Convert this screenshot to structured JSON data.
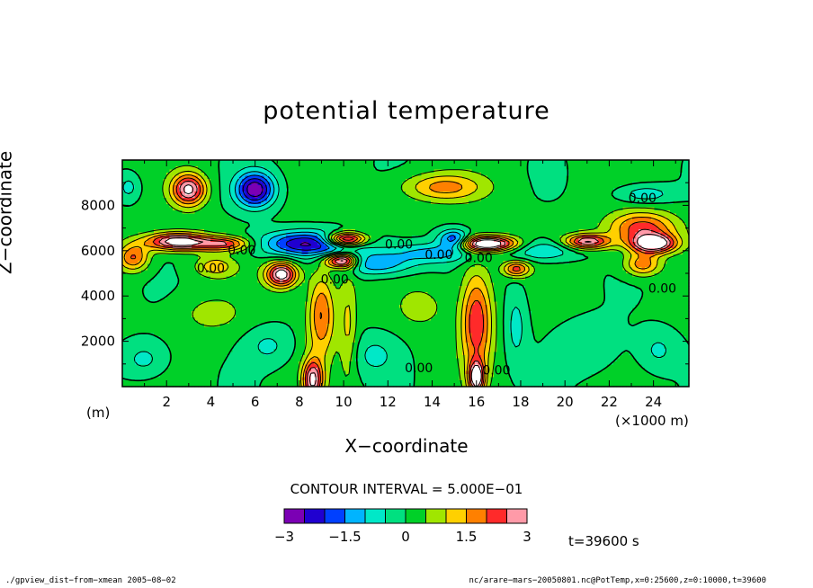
{
  "chart_data": {
    "type": "heatmap",
    "title": "potential temperature",
    "xlabel": "X−coordinate",
    "ylabel": "Z−coordinate",
    "x_unit_label": "(×1000 m)",
    "y_unit_label": "(m)",
    "xlim": [
      0,
      25.6
    ],
    "ylim": [
      0,
      10000
    ],
    "x_ticks": [
      2,
      4,
      6,
      8,
      10,
      12,
      14,
      16,
      18,
      20,
      22,
      24
    ],
    "y_ticks": [
      2000,
      4000,
      6000,
      8000
    ],
    "contour_interval_text": "CONTOUR INTERVAL = 5.000E−01",
    "colorbar": {
      "levels": [
        -3,
        -2.5,
        -2,
        -1.5,
        -1,
        -0.5,
        0,
        0.5,
        1,
        1.5,
        2,
        2.5,
        3
      ],
      "tick_labels": [
        "−3",
        "−1.5",
        "0",
        "1.5",
        "3"
      ],
      "tick_values": [
        -3,
        -1.5,
        0,
        1.5,
        3
      ],
      "colors": [
        "#7b00b4",
        "#2000d0",
        "#0040ff",
        "#00b4ff",
        "#00e8c8",
        "#00e080",
        "#00d028",
        "#a0e600",
        "#ffd000",
        "#ff8000",
        "#ff2a2a",
        "#ff9aa8"
      ]
    },
    "contour_labels": [
      {
        "text": "0.00",
        "x": 23.5,
        "y": 8300
      },
      {
        "text": "0.00",
        "x": 12.5,
        "y": 6250
      },
      {
        "text": "0.00",
        "x": 5.4,
        "y": 6000
      },
      {
        "text": "0.00",
        "x": 4.0,
        "y": 5200
      },
      {
        "text": "0.00",
        "x": 9.6,
        "y": 4700
      },
      {
        "text": "0.00",
        "x": 14.3,
        "y": 5800
      },
      {
        "text": "0.00",
        "x": 16.1,
        "y": 5650
      },
      {
        "text": "0.00",
        "x": 24.4,
        "y": 4300
      },
      {
        "text": "0.00",
        "x": 13.4,
        "y": 800
      },
      {
        "text": "0.00",
        "x": 16.9,
        "y": 700
      }
    ],
    "features": [
      {
        "x": 0,
        "y": 10000,
        "v": 0.3
      }
    ],
    "time_label": "t=39600 s"
  },
  "footer": {
    "left": "./gpview_dist−from−xmean  2005−08−02",
    "right": "nc/arare−mars−20050801.nc@PotTemp,x=0:25600,z=0:10000,t=39600"
  }
}
